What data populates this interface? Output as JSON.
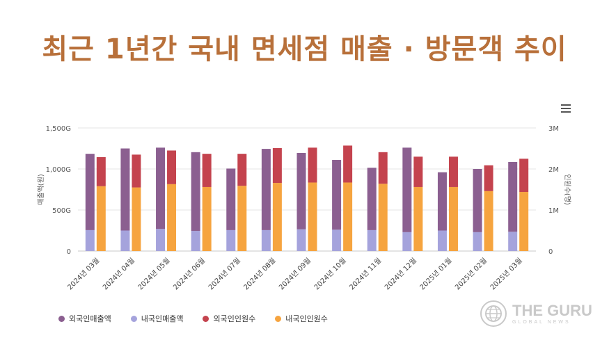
{
  "header": {
    "title": "최근 1년간 국내 면세점 매출 · 방문객 추이"
  },
  "chart_data": {
    "type": "bar",
    "categories": [
      "2024년 03월",
      "2024년 04월",
      "2024년 05월",
      "2024년 06월",
      "2024년 07월",
      "2024년 08월",
      "2024년 09월",
      "2024년 10월",
      "2024년 11월",
      "2024년 12월",
      "2025년 01월",
      "2025년 02월",
      "2025년 03월"
    ],
    "left_axis": {
      "label": "매출액(원)",
      "ticks": [
        "0",
        "500G",
        "1,000G",
        "1,500G"
      ],
      "range": [
        0,
        1500
      ]
    },
    "right_axis": {
      "label": "인원수(명)",
      "ticks": [
        "0",
        "1M",
        "2M",
        "3M"
      ],
      "range": [
        0,
        3
      ]
    },
    "series": [
      {
        "name": "외국인매출액",
        "color": "#8b5f90",
        "axis": "left",
        "stack": "sales",
        "values": [
          930,
          1000,
          990,
          960,
          750,
          990,
          930,
          850,
          760,
          1030,
          710,
          770,
          850
        ]
      },
      {
        "name": "내국인매출액",
        "color": "#a5a3dc",
        "axis": "left",
        "stack": "sales",
        "values": [
          255,
          250,
          270,
          245,
          255,
          255,
          265,
          260,
          255,
          230,
          250,
          230,
          235
        ]
      },
      {
        "name": "외국인인원수",
        "color": "#c4434e",
        "axis": "right",
        "stack": "visitors",
        "values": [
          0.71,
          0.8,
          0.82,
          0.81,
          0.78,
          0.85,
          0.85,
          0.9,
          0.77,
          0.74,
          0.74,
          0.63,
          0.81
        ]
      },
      {
        "name": "내국인인원수",
        "color": "#f6a43f",
        "axis": "right",
        "stack": "visitors",
        "values": [
          1.58,
          1.55,
          1.63,
          1.56,
          1.59,
          1.66,
          1.67,
          1.67,
          1.64,
          1.56,
          1.56,
          1.46,
          1.44
        ]
      }
    ]
  },
  "legend": {
    "items": [
      {
        "label": "외국인매출액",
        "color": "#8b5f90"
      },
      {
        "label": "내국인매출액",
        "color": "#a5a3dc"
      },
      {
        "label": "외국인인원수",
        "color": "#c4434e"
      },
      {
        "label": "내국인인원수",
        "color": "#f6a43f"
      }
    ]
  },
  "logo": {
    "main": "THE GURU",
    "sub": "GLOBAL NEWS"
  }
}
